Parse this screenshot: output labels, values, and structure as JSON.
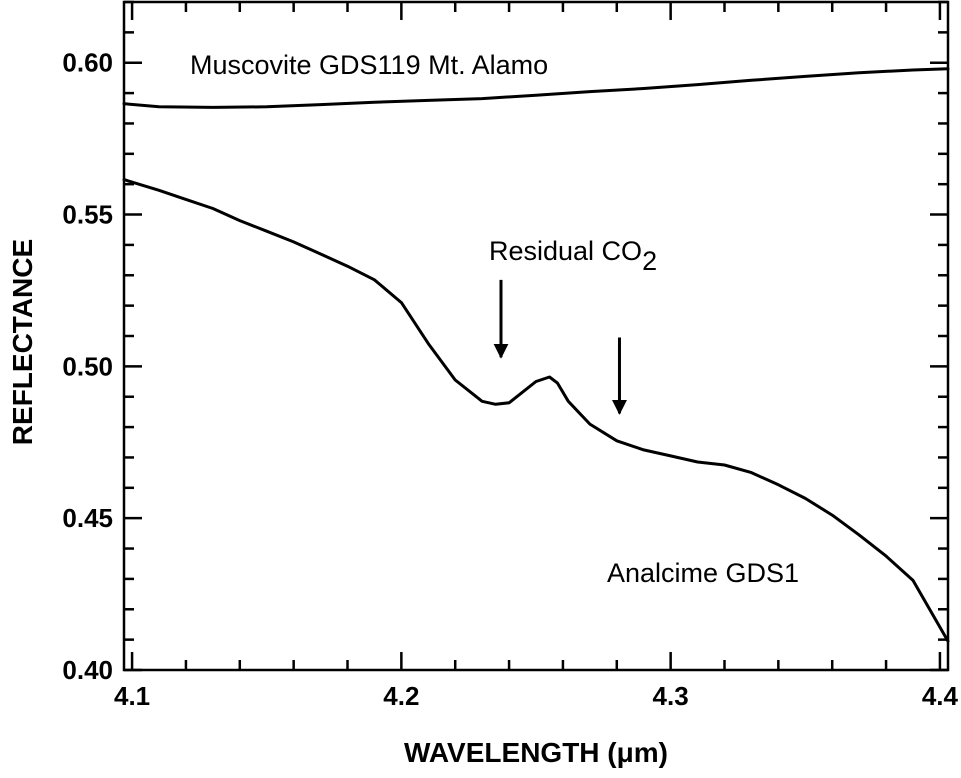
{
  "chart_data": {
    "type": "line",
    "title": "",
    "xlabel": "WAVELENGTH (μm)",
    "ylabel": "REFLECTANCE",
    "xlim": [
      4.097,
      4.403
    ],
    "ylim": [
      0.4,
      0.62
    ],
    "xticks": [
      4.1,
      4.2,
      4.3,
      4.4
    ],
    "xtick_labels": [
      "4.1",
      "4.2",
      "4.3",
      "4.4"
    ],
    "yticks": [
      0.4,
      0.45,
      0.5,
      0.55,
      0.6
    ],
    "ytick_labels": [
      "0.40",
      "0.45",
      "0.50",
      "0.55",
      "0.60"
    ],
    "grid": false,
    "series": [
      {
        "name": "Muscovite GDS119 Mt. Alamo",
        "x": [
          4.097,
          4.11,
          4.13,
          4.15,
          4.17,
          4.19,
          4.21,
          4.23,
          4.25,
          4.27,
          4.29,
          4.31,
          4.33,
          4.35,
          4.37,
          4.39,
          4.403
        ],
        "y": [
          0.5865,
          0.5855,
          0.5853,
          0.5855,
          0.5862,
          0.587,
          0.5876,
          0.5882,
          0.5893,
          0.5905,
          0.5915,
          0.5928,
          0.5942,
          0.5955,
          0.5967,
          0.5976,
          0.598
        ]
      },
      {
        "name": "Analcime GDS1",
        "x": [
          4.097,
          4.11,
          4.12,
          4.13,
          4.14,
          4.15,
          4.16,
          4.17,
          4.18,
          4.19,
          4.2,
          4.21,
          4.22,
          4.23,
          4.235,
          4.24,
          4.245,
          4.25,
          4.255,
          4.258,
          4.262,
          4.27,
          4.28,
          4.29,
          4.3,
          4.31,
          4.32,
          4.33,
          4.34,
          4.35,
          4.36,
          4.37,
          4.38,
          4.39,
          4.403
        ],
        "y": [
          0.5615,
          0.558,
          0.555,
          0.552,
          0.548,
          0.5445,
          0.541,
          0.537,
          0.533,
          0.5285,
          0.521,
          0.5075,
          0.4955,
          0.4885,
          0.4875,
          0.488,
          0.4915,
          0.495,
          0.4965,
          0.4945,
          0.4885,
          0.481,
          0.4755,
          0.4725,
          0.4705,
          0.4685,
          0.4675,
          0.465,
          0.461,
          0.4565,
          0.451,
          0.4445,
          0.4375,
          0.4295,
          0.4095
        ]
      }
    ],
    "annotations": [
      {
        "id": "muscovite-label",
        "text": "Muscovite GDS119 Mt. Alamo"
      },
      {
        "id": "analcime-label",
        "text": "Analcime GDS1"
      },
      {
        "id": "co2-label",
        "text": "Residual CO",
        "subscript": "2"
      }
    ],
    "arrows": [
      {
        "x": 4.237,
        "y_from": 0.5285,
        "y_to": 0.503
      },
      {
        "x": 4.281,
        "y_from": 0.5095,
        "y_to": 0.4845
      }
    ]
  }
}
